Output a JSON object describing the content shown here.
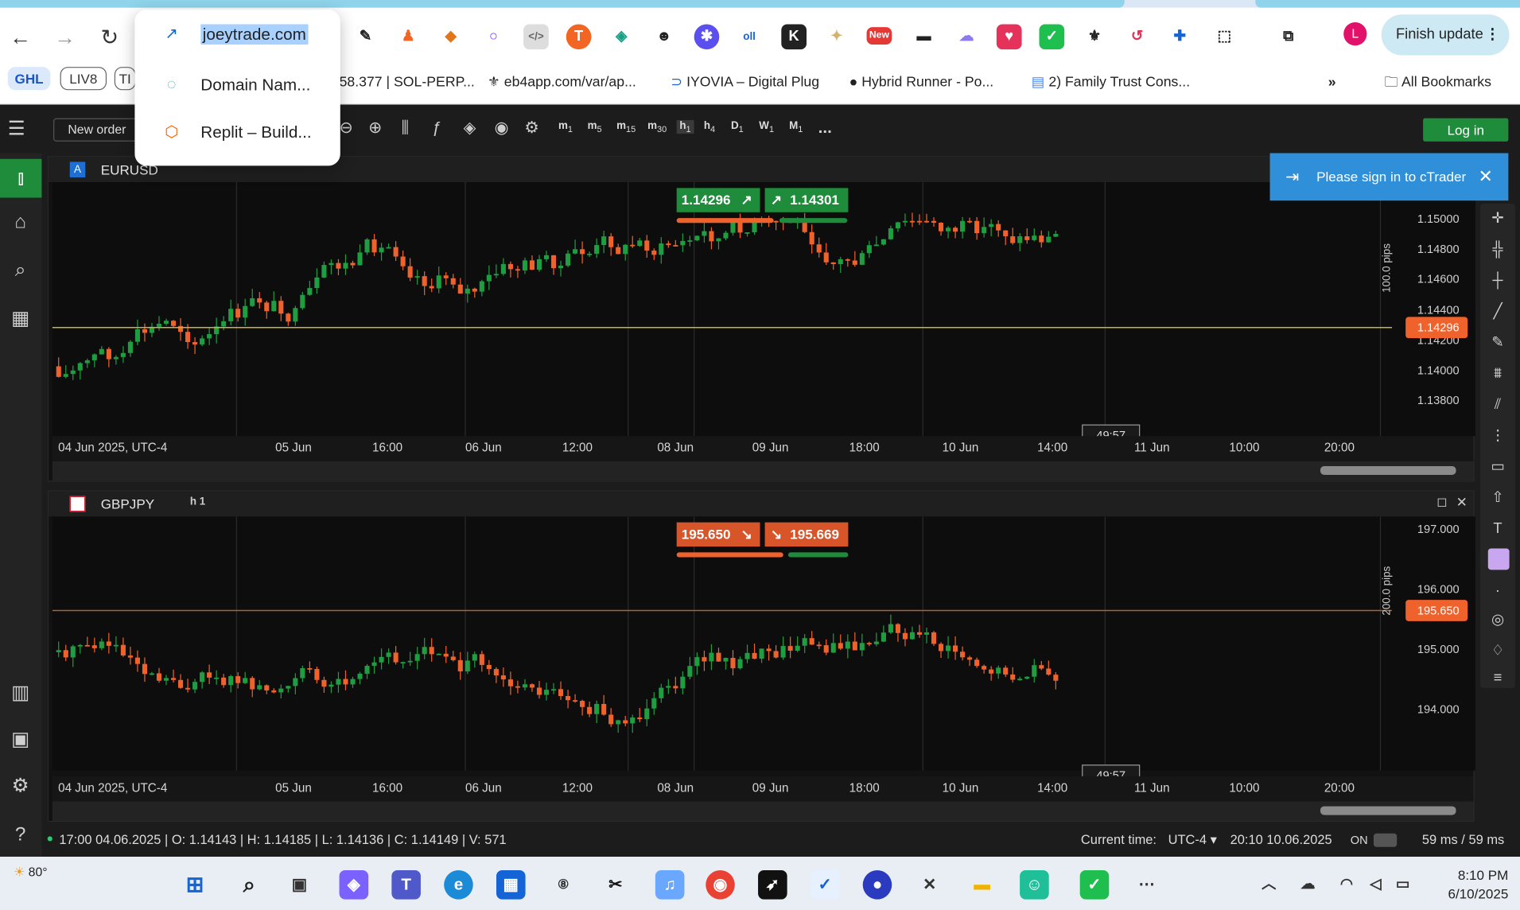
{
  "browser": {
    "omnibox_dropdown": {
      "items": [
        {
          "label": "joeytrade.com",
          "selected": true
        },
        {
          "label": "Domain Nam..."
        },
        {
          "label": "Replit – Build..."
        }
      ]
    },
    "finish_update_label": "Finish update",
    "avatar_letter": "L",
    "ext_new_badge": "New",
    "bookmarks": {
      "pills": [
        "GHL",
        "LIV8",
        "TI"
      ],
      "items": [
        {
          "label": "58.377 | SOL-PERP..."
        },
        {
          "label": "eb4app.com/var/ap..."
        },
        {
          "label": "IYOVIA – Digital Plug"
        },
        {
          "label": "Hybrid Runner - Po..."
        },
        {
          "label": "2) Family Trust Cons..."
        }
      ],
      "more": "»",
      "all_bookmarks": "All Bookmarks"
    }
  },
  "app": {
    "new_order": "New order",
    "timeframes": [
      {
        "k": "m",
        "n": "1"
      },
      {
        "k": "m",
        "n": "5"
      },
      {
        "k": "m",
        "n": "15"
      },
      {
        "k": "m",
        "n": "30"
      },
      {
        "k": "h",
        "n": "1"
      },
      {
        "k": "h",
        "n": "4"
      },
      {
        "k": "D",
        "n": "1"
      },
      {
        "k": "W",
        "n": "1"
      },
      {
        "k": "M",
        "n": "1"
      }
    ],
    "more_tools": "...",
    "login": "Log in",
    "signin_banner": "Please sign in to cTrader",
    "charts": [
      {
        "symbol": "EURUSD",
        "timeframe": "h 1",
        "sell_price": "1.14296",
        "buy_price": "1.14301",
        "current_price": "1.14296",
        "pips_label": "100.0 pips",
        "countdown": "49:57",
        "y_ticks": [
          "1.15000",
          "1.14800",
          "1.14600",
          "1.14400",
          "1.14200",
          "1.14000",
          "1.13800"
        ],
        "x_ticks": [
          "04 Jun 2025, UTC-4",
          "05 Jun",
          "16:00",
          "06 Jun",
          "12:00",
          "08 Jun",
          "09 Jun",
          "18:00",
          "10 Jun",
          "14:00",
          "11 Jun",
          "10:00",
          "20:00"
        ]
      },
      {
        "symbol": "GBPJPY",
        "timeframe": "h 1",
        "sell_price": "195.650",
        "buy_price": "195.669",
        "current_price": "195.650",
        "pips_label": "200.0 pips",
        "countdown": "49:57",
        "y_ticks": [
          "197.000",
          "196.000",
          "195.000",
          "194.000"
        ],
        "x_ticks": [
          "04 Jun 2025, UTC-4",
          "05 Jun",
          "16:00",
          "06 Jun",
          "12:00",
          "08 Jun",
          "09 Jun",
          "18:00",
          "10 Jun",
          "14:00",
          "11 Jun",
          "10:00",
          "20:00"
        ]
      }
    ],
    "status": {
      "ohlc": "17:00 04.06.2025 | O: 1.14143 | H: 1.14185 | L: 1.14136 | C: 1.14149 | V: 571",
      "current_time_label": "Current time:",
      "timezone": "UTC-4",
      "datetime": "20:10 10.06.2025",
      "on_label": "ON",
      "latency": "59 ms",
      "latency2": "59 ms"
    }
  },
  "taskbar": {
    "weather": "80°",
    "time": "8:10 PM",
    "date": "6/10/2025"
  },
  "colors": {
    "bull": "#1e9e40",
    "bear": "#f0622c",
    "accent": "#2f8fd8"
  }
}
